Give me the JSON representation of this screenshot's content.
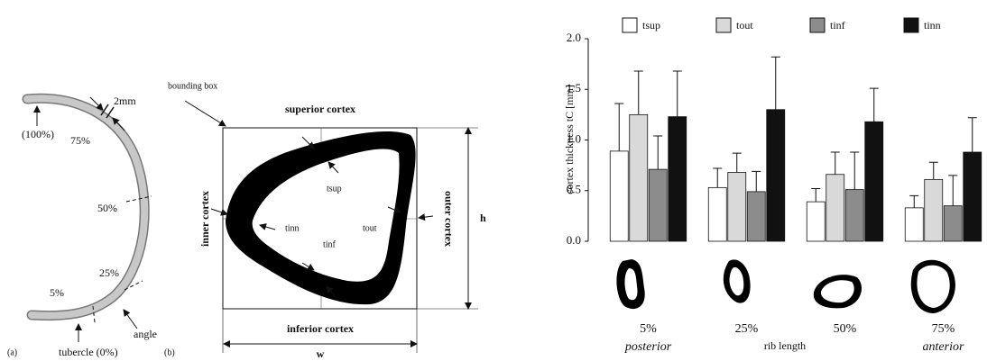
{
  "panel_a": {
    "label": "(a)",
    "width_label": "2mm",
    "p100": "(100%)",
    "p75": "75%",
    "p50": "50%",
    "p25": "25%",
    "p5": "5%",
    "angle": "angle",
    "tubercle": "tubercle (0%)"
  },
  "panel_b": {
    "label": "(b)",
    "bounding_box": "bounding box",
    "superior": "superior cortex",
    "inferior": "inferior cortex",
    "inner": "inner cortex",
    "outer": "outer cortex",
    "t_sup": "tsup",
    "t_inn": "tinn",
    "t_inf": "tinf",
    "t_out": "tout",
    "h": "h",
    "w": "w"
  },
  "chart_data": {
    "type": "bar",
    "y_label": "cortex thickness tC [mm]",
    "x_label": "rib length",
    "categories": [
      "5%",
      "25%",
      "50%",
      "75%"
    ],
    "annotations": [
      "posterior",
      "anterior"
    ],
    "ylim": [
      0,
      2
    ],
    "yticks": [
      {
        "value": 0,
        "label": "0.0"
      },
      0.5,
      {
        "value": 1,
        "label": "1.0"
      },
      1.5,
      {
        "value": 2,
        "label": "2.0"
      }
    ],
    "series": [
      {
        "name": "tsup",
        "color": "#ffffff",
        "values": [
          0.89,
          0.53,
          0.39,
          0.33
        ],
        "errors": [
          0.47,
          0.19,
          0.13,
          0.12
        ]
      },
      {
        "name": "tout",
        "color": "#d9d9d9",
        "values": [
          1.25,
          0.68,
          0.66,
          0.61
        ],
        "errors": [
          0.43,
          0.19,
          0.22,
          0.17
        ]
      },
      {
        "name": "tinf",
        "color": "#8c8c8c",
        "values": [
          0.71,
          0.49,
          0.51,
          0.35
        ],
        "errors": [
          0.33,
          0.2,
          0.37,
          0.3
        ]
      },
      {
        "name": "tinn",
        "color": "#111111",
        "values": [
          1.23,
          1.3,
          1.18,
          0.88
        ],
        "errors": [
          0.45,
          0.52,
          0.33,
          0.34
        ]
      }
    ]
  }
}
